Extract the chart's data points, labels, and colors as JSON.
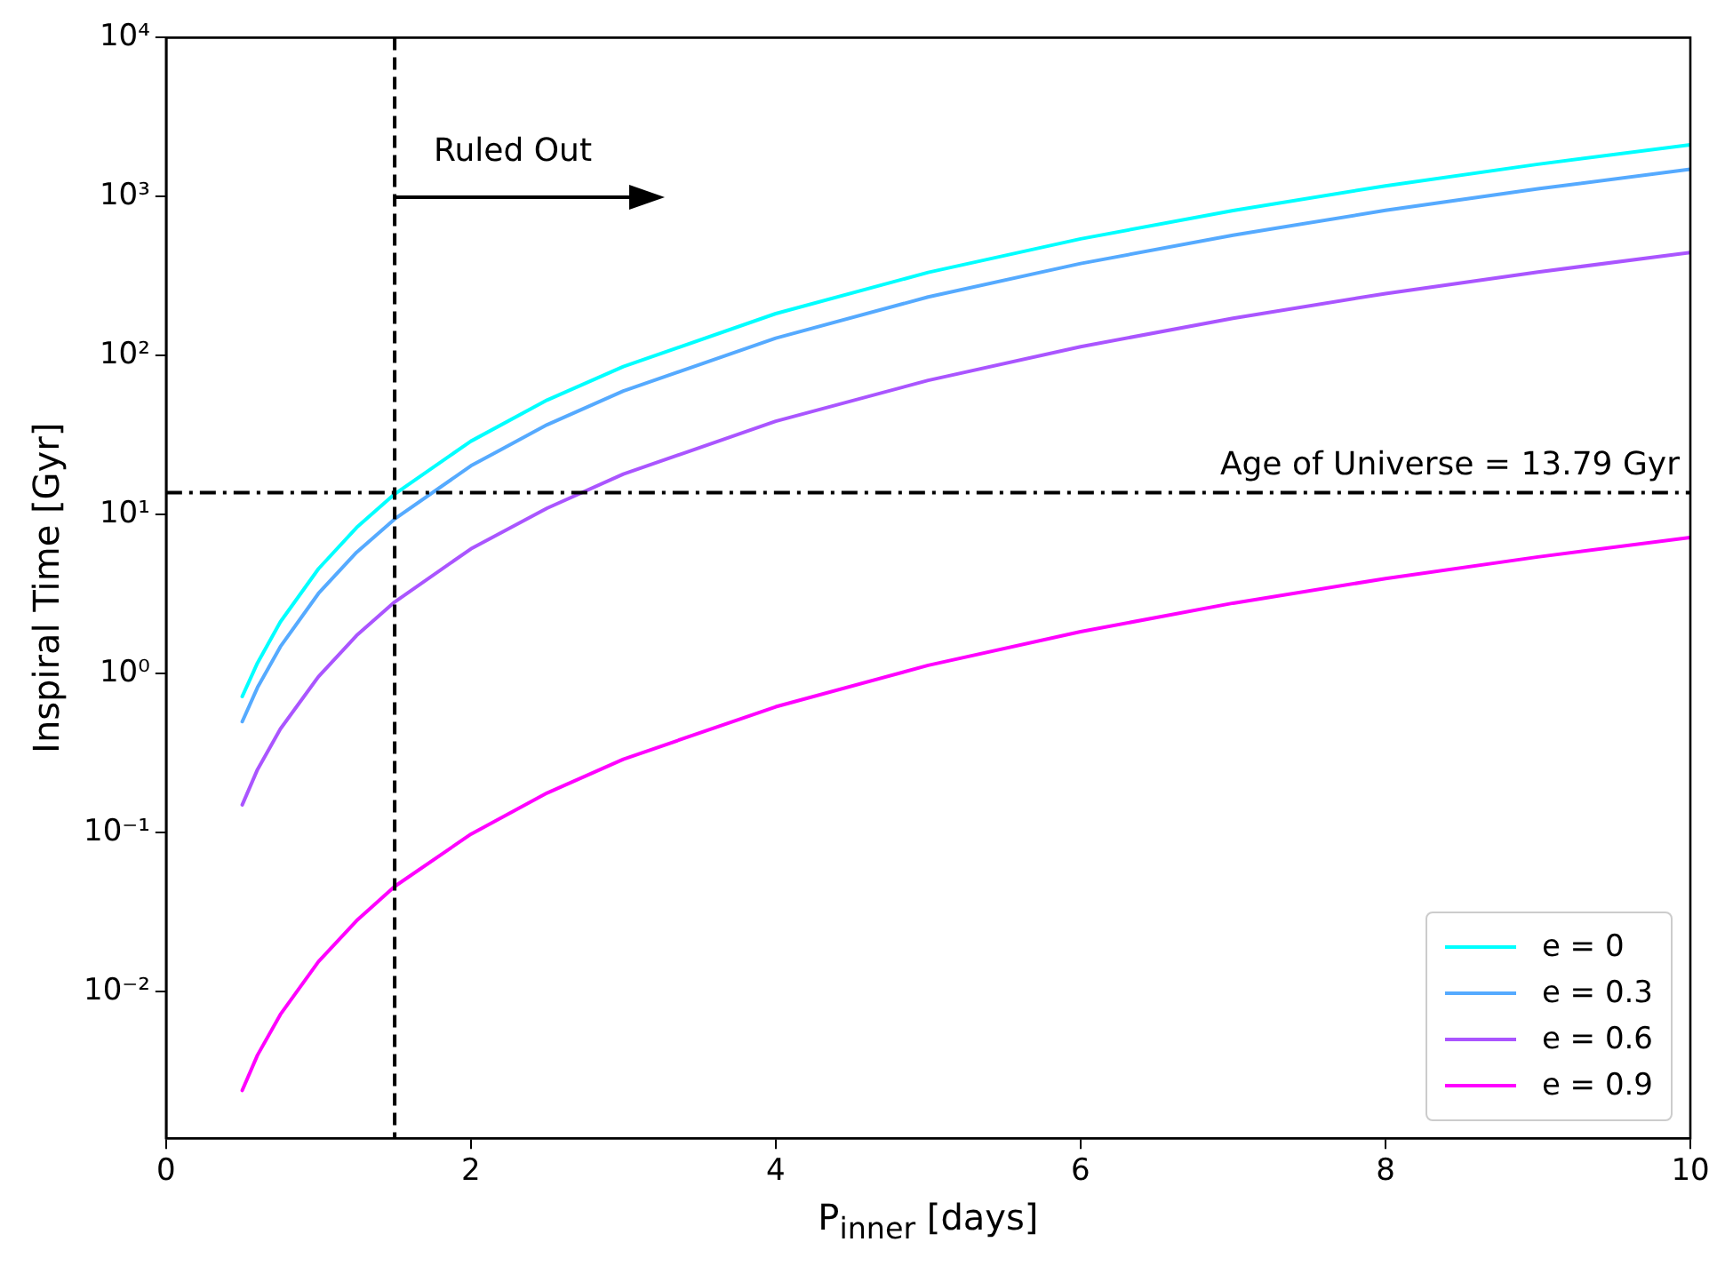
{
  "chart_data": {
    "type": "line",
    "xlabel": "P$_{inner}$ [days]",
    "ylabel": "Inspiral Time [Gyr]",
    "x": [
      0.5,
      0.6,
      0.75,
      1,
      1.25,
      1.5,
      2,
      2.5,
      3,
      4,
      5,
      6,
      7,
      8,
      9,
      10
    ],
    "series": [
      {
        "name": "e = 0",
        "color": "#00ffff",
        "values": [
          0.72,
          1.17,
          2.12,
          4.57,
          8.3,
          13.5,
          29,
          52.6,
          85.5,
          184,
          334,
          543,
          819,
          1170,
          1600,
          2120
        ]
      },
      {
        "name": "e = 0.3",
        "color": "#55aaff",
        "values": [
          0.5,
          0.82,
          1.48,
          3.2,
          5.8,
          9.4,
          20.3,
          36.8,
          60,
          129,
          234,
          380,
          573,
          820,
          1120,
          1490
        ]
      },
      {
        "name": "e = 0.6",
        "color": "#aa55ff",
        "values": [
          0.15,
          0.25,
          0.45,
          0.96,
          1.74,
          2.83,
          6.1,
          11,
          18,
          38.7,
          70,
          114,
          172,
          246,
          336,
          445
        ]
      },
      {
        "name": "e = 0.9",
        "color": "#ff00ff",
        "values": [
          0.0024,
          0.004,
          0.0072,
          0.0155,
          0.028,
          0.046,
          0.098,
          0.178,
          0.29,
          0.62,
          1.13,
          1.84,
          2.78,
          3.97,
          5.43,
          7.2
        ]
      }
    ],
    "xlim": [
      0,
      10
    ],
    "xticks": [
      0,
      2,
      4,
      6,
      8,
      10
    ],
    "ylim": [
      0.0012,
      10000
    ],
    "yticks": [
      {
        "value": 0.01,
        "label": "10⁻²"
      },
      {
        "value": 0.1,
        "label": "10⁻¹"
      },
      {
        "value": 1,
        "label": "10⁰"
      },
      {
        "value": 10,
        "label": "10¹"
      },
      {
        "value": 100,
        "label": "10²"
      },
      {
        "value": 1000,
        "label": "10³"
      },
      {
        "value": 10000,
        "label": "10⁴"
      }
    ],
    "log": "y",
    "grid": false,
    "legend": "bottom right",
    "marker": "none",
    "line_style": "solid",
    "ref_lines": [
      {
        "axis": "x",
        "value": 1.5,
        "color": "#000000",
        "line_style": "dashed"
      },
      {
        "axis": "y",
        "value": 13.79,
        "label": "Age of Universe = 13.79 Gyr",
        "color": "#000000",
        "line_style": "dashdot"
      }
    ],
    "annotations": [
      {
        "text": "Ruled Out",
        "x": 1.5,
        "y": 1000
      }
    ]
  }
}
